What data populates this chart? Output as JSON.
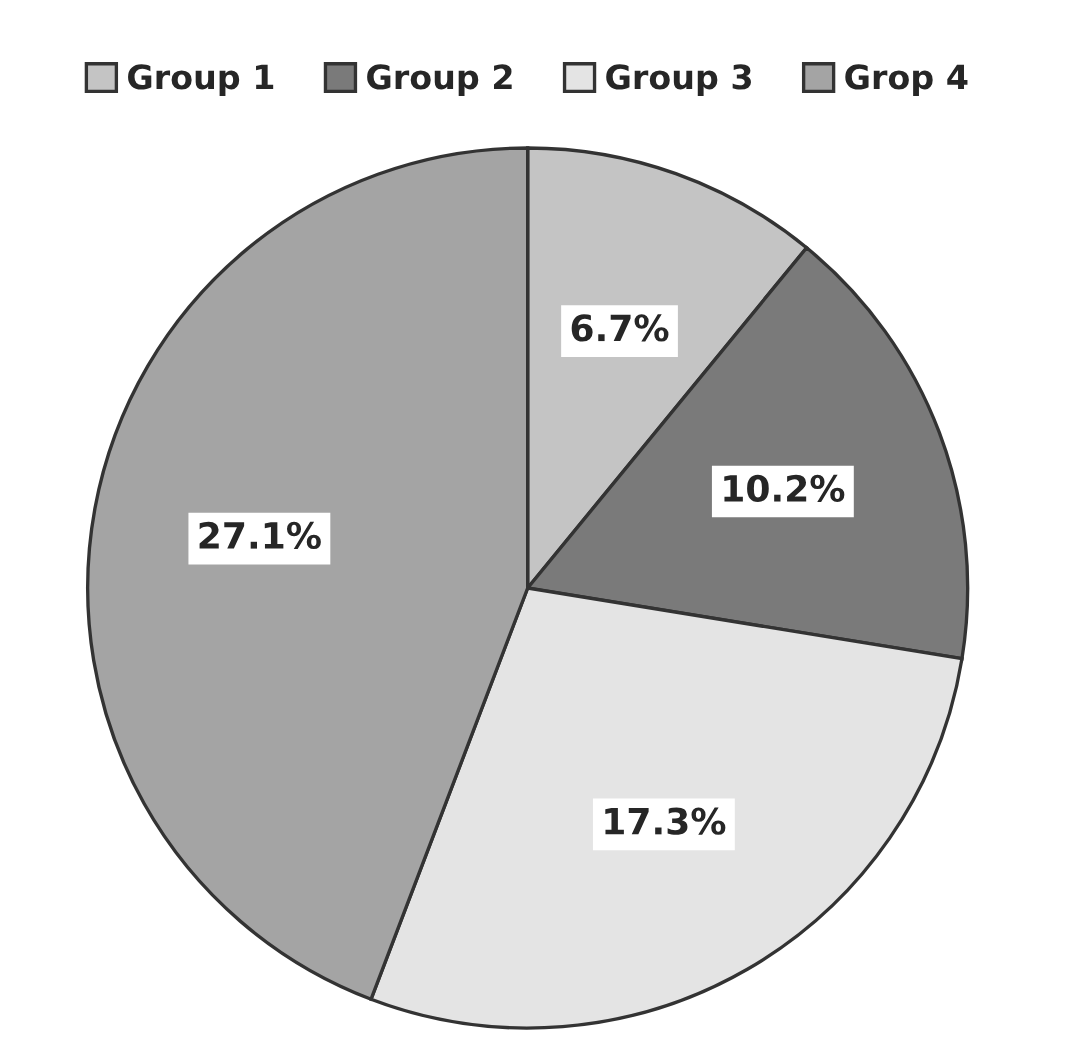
{
  "chart_data": {
    "type": "pie",
    "categories": [
      "Group 1",
      "Group 2",
      "Group 3",
      "Grop 4"
    ],
    "values": [
      6.7,
      10.2,
      17.3,
      27.1
    ],
    "colors": [
      "#c4c4c4",
      "#7a7a7a",
      "#e4e4e4",
      "#a4a4a4"
    ],
    "value_labels": [
      "6.7%",
      "10.2%",
      "17.3%",
      "27.1%"
    ],
    "legend": "top"
  }
}
